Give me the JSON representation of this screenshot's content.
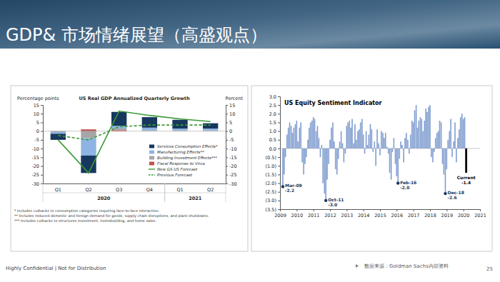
{
  "slide": {
    "title": "GDP& 市场情绪展望（高盛观点）",
    "confidential": "Highly Confidential | Not for Distribution",
    "source": "数据来源：Goldman Sachs内部资料",
    "page": 25
  },
  "chart_data": [
    {
      "type": "bar",
      "stacked": true,
      "title": "US Real GDP Annualized Quarterly Growth",
      "y_label": "Percentage points",
      "y2_label": "Percent",
      "categories": [
        "Q1",
        "Q2",
        "Q3",
        "Q4",
        "Q1",
        "Q2"
      ],
      "category_groups": [
        {
          "label": "2020",
          "categories": [
            0,
            1,
            2,
            3
          ]
        },
        {
          "label": "2021",
          "categories": [
            4,
            5
          ]
        }
      ],
      "ylim": [
        -30,
        15
      ],
      "yticks": [
        -30,
        -25,
        -20,
        -15,
        -10,
        -5,
        0,
        5,
        10,
        15
      ],
      "y2lim": [
        -30,
        15
      ],
      "y2ticks": [
        -30,
        -25,
        -20,
        -15,
        -10,
        -5,
        0,
        5,
        10,
        15
      ],
      "legend": "lower right",
      "series": [
        {
          "name": "Services Consumption Effects*",
          "type": "bar",
          "color": "#17375e",
          "values": [
            -3.5,
            -10,
            8,
            6,
            5,
            3
          ]
        },
        {
          "name": "Manufacturing Effects**",
          "type": "bar",
          "color": "#8db4e2",
          "values": [
            -1,
            -10,
            1.5,
            1.5,
            1,
            1
          ]
        },
        {
          "name": "Building Investment Effects***",
          "type": "bar",
          "color": "#a6a6a6",
          "values": [
            -0.5,
            -4,
            1,
            0.5,
            0.5,
            0.5
          ]
        },
        {
          "name": "Fiscal Response to Virus",
          "type": "bar",
          "color": "#c0504d",
          "values": [
            0,
            1,
            0.5,
            0,
            0,
            0
          ]
        },
        {
          "name": "New GS US Forecast",
          "type": "line",
          "axis": "y2",
          "line_style": "solid",
          "color": "#3a9a35",
          "values": [
            -5,
            -24,
            11.5,
            9,
            7,
            5.5
          ]
        },
        {
          "name": "Previous Forecast",
          "type": "line",
          "axis": "y2",
          "line_style": "dashed",
          "color": "#3a9a35",
          "values": [
            -2.5,
            -5,
            2.5,
            3.5,
            3.5,
            3.5
          ]
        }
      ],
      "notes": [
        "* Includes cutbacks to consumption categories requiring face-to-face interaction.",
        "** Includes reduced domestic and foreign demand for goods, supply chain disruptions, and plant shutdowns.",
        "*** Includes cutbacks to structures investment, homebuilding, and home sales."
      ]
    },
    {
      "type": "bar",
      "title": "US Equity Sentiment Indicator",
      "color": "#7f9ccf",
      "xlim": [
        2009,
        2021
      ],
      "xticks": [
        2009,
        2010,
        2011,
        2012,
        2013,
        2014,
        2015,
        2016,
        2017,
        2018,
        2019,
        2020,
        2021
      ],
      "ylim": [
        -3.5,
        3
      ],
      "yticks": [
        {
          "value": -3.5,
          "label": "(3.5)"
        },
        {
          "value": -3,
          "label": "(3.0)"
        },
        {
          "value": -2.5,
          "label": "(2.5)"
        },
        {
          "value": -2,
          "label": "(2.0)"
        },
        {
          "value": -1.5,
          "label": "(1.5)"
        },
        {
          "value": -1,
          "label": "(1.0)"
        },
        {
          "value": -0.5,
          "label": "(0.5)"
        },
        {
          "value": 0,
          "label": "0.0"
        },
        0.5,
        {
          "value": 1,
          "label": "1.0"
        },
        1.5,
        {
          "value": 2,
          "label": "2.0"
        },
        2.5,
        {
          "value": 3,
          "label": "3.0"
        }
      ],
      "x": [
        2009.17,
        2009.25,
        2009.33,
        2009.42,
        2009.5,
        2009.58,
        2009.67,
        2009.75,
        2009.83,
        2009.92,
        2010,
        2010.08,
        2010.17,
        2010.25,
        2010.33,
        2010.42,
        2010.5,
        2010.58,
        2010.67,
        2010.75,
        2010.83,
        2010.92,
        2011,
        2011.08,
        2011.17,
        2011.25,
        2011.33,
        2011.42,
        2011.5,
        2011.58,
        2011.67,
        2011.75,
        2011.83,
        2011.92,
        2012,
        2012.08,
        2012.17,
        2012.25,
        2012.33,
        2012.42,
        2012.5,
        2012.58,
        2012.67,
        2012.75,
        2012.83,
        2012.92,
        2013,
        2013.08,
        2013.17,
        2013.25,
        2013.33,
        2013.42,
        2013.5,
        2013.58,
        2013.67,
        2013.75,
        2013.83,
        2013.92,
        2014,
        2014.08,
        2014.17,
        2014.25,
        2014.33,
        2014.42,
        2014.5,
        2014.58,
        2014.67,
        2014.75,
        2014.83,
        2014.92,
        2015,
        2015.08,
        2015.17,
        2015.25,
        2015.33,
        2015.42,
        2015.5,
        2015.58,
        2015.67,
        2015.75,
        2015.83,
        2015.92,
        2016,
        2016.08,
        2016.17,
        2016.25,
        2016.33,
        2016.42,
        2016.5,
        2016.58,
        2016.67,
        2016.75,
        2016.83,
        2016.92,
        2017,
        2017.08,
        2017.17,
        2017.25,
        2017.33,
        2017.42,
        2017.5,
        2017.58,
        2017.67,
        2017.75,
        2017.83,
        2017.92,
        2018,
        2018.08,
        2018.17,
        2018.25,
        2018.33,
        2018.42,
        2018.5,
        2018.58,
        2018.67,
        2018.75,
        2018.83,
        2018.92,
        2019,
        2019.08,
        2019.17,
        2019.25,
        2019.33,
        2019.42,
        2019.5,
        2019.58,
        2019.67,
        2019.75,
        2019.83,
        2019.92,
        2020,
        2020.08
      ],
      "values": [
        -2.2,
        -1.5,
        -0.5,
        0.8,
        1.2,
        1.5,
        1.3,
        0.9,
        1.2,
        1.4,
        1.6,
        0.4,
        1.2,
        1.5,
        -0.8,
        -1.5,
        -0.9,
        -0.5,
        0.5,
        1.2,
        1.5,
        1.6,
        1.8,
        1.7,
        1.0,
        1.3,
        0.6,
        -0.5,
        0.2,
        -2.0,
        -2.6,
        -3.0,
        -1.8,
        -0.9,
        0.5,
        1.2,
        1.5,
        0.4,
        -1.2,
        -1.5,
        -0.6,
        0.4,
        1.0,
        0.3,
        -0.8,
        -0.3,
        1.3,
        1.5,
        1.6,
        1.2,
        1.7,
        0.3,
        1.4,
        0.5,
        1.0,
        1.1,
        1.5,
        1.7,
        0.8,
        -0.3,
        1.0,
        0.2,
        0.8,
        1.4,
        1.1,
        -0.2,
        0.4,
        -1.0,
        1.1,
        0.3,
        -0.4,
        1.0,
        0.9,
        0.6,
        0.9,
        0.1,
        -0.3,
        -1.4,
        -1.8,
        -0.2,
        0.6,
        -0.9,
        -1.6,
        -2.0,
        -0.6,
        0.4,
        0.2,
        -0.8,
        0.6,
        0.9,
        0.5,
        -0.3,
        0.8,
        1.6,
        1.5,
        2.2,
        2.5,
        1.2,
        1.6,
        1.8,
        1.7,
        1.0,
        1.6,
        2.3,
        2.1,
        2.4,
        2.5,
        -0.5,
        -0.8,
        -0.2,
        0.6,
        0.9,
        1.0,
        1.6,
        1.5,
        -0.9,
        -1.5,
        -2.6,
        -1.2,
        0.5,
        1.0,
        1.7,
        -0.5,
        0.4,
        1.5,
        -0.8,
        0.6,
        1.1,
        1.8,
        2.0,
        1.7,
        1.8
      ],
      "annotations": [
        {
          "label": "Mar-09",
          "x": 2009.17,
          "y": -2.2,
          "text": "-2.2"
        },
        {
          "label": "Oct-11",
          "x": 2011.75,
          "y": -3.0,
          "text": "-3.0"
        },
        {
          "label": "Feb-16",
          "x": 2016.08,
          "y": -2.0,
          "text": "-2.0"
        },
        {
          "label": "Dec-18",
          "x": 2018.92,
          "y": -2.6,
          "text": "-2.6"
        }
      ],
      "current": {
        "label": "Current",
        "x": 2020.17,
        "y": -1.4,
        "text": "-1.4",
        "color": "#000000"
      }
    }
  ]
}
